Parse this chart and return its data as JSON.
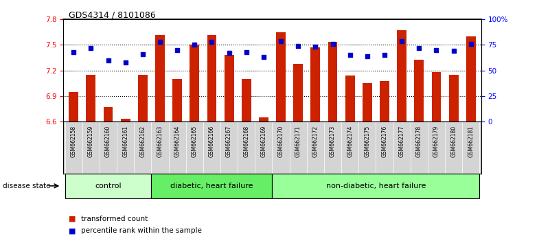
{
  "title": "GDS4314 / 8101086",
  "samples": [
    "GSM662158",
    "GSM662159",
    "GSM662160",
    "GSM662161",
    "GSM662162",
    "GSM662163",
    "GSM662164",
    "GSM662165",
    "GSM662166",
    "GSM662167",
    "GSM662168",
    "GSM662169",
    "GSM662170",
    "GSM662171",
    "GSM662172",
    "GSM662173",
    "GSM662174",
    "GSM662175",
    "GSM662176",
    "GSM662177",
    "GSM662178",
    "GSM662179",
    "GSM662180",
    "GSM662181"
  ],
  "transformed_count": [
    6.95,
    7.15,
    6.77,
    6.63,
    7.15,
    7.62,
    7.1,
    7.5,
    7.62,
    7.38,
    7.1,
    6.65,
    7.65,
    7.28,
    7.47,
    7.54,
    7.14,
    7.05,
    7.08,
    7.67,
    7.33,
    7.18,
    7.15,
    7.6
  ],
  "percentile_rank": [
    68,
    72,
    60,
    58,
    66,
    78,
    70,
    75,
    78,
    67,
    68,
    63,
    79,
    74,
    73,
    76,
    65,
    64,
    65,
    79,
    72,
    70,
    69,
    76
  ],
  "ylim_left": [
    6.6,
    7.8
  ],
  "ylim_right": [
    0,
    100
  ],
  "yticks_left": [
    6.6,
    6.9,
    7.2,
    7.5,
    7.8
  ],
  "yticks_right": [
    0,
    25,
    50,
    75,
    100
  ],
  "ytick_labels_right": [
    "0",
    "25",
    "50",
    "75",
    "100%"
  ],
  "hlines": [
    7.5,
    7.2,
    6.9
  ],
  "groups": [
    {
      "label": "control",
      "start": 0,
      "end": 4,
      "color": "#ccffcc"
    },
    {
      "label": "diabetic, heart failure",
      "start": 5,
      "end": 11,
      "color": "#66ee66"
    },
    {
      "label": "non-diabetic, heart failure",
      "start": 12,
      "end": 23,
      "color": "#99ff99"
    }
  ],
  "bar_color": "#CC2200",
  "dot_color": "#0000CC",
  "bar_width": 0.55,
  "tick_label_fontsize": 5.5,
  "title_fontsize": 9,
  "legend_fontsize": 7.5,
  "group_label_fontsize": 8,
  "disease_state_label": "disease state",
  "legend_items": [
    {
      "label": "transformed count",
      "color": "#CC2200"
    },
    {
      "label": "percentile rank within the sample",
      "color": "#0000CC"
    }
  ],
  "plot_bg": "#ffffff",
  "sample_bg": "#d4d4d4"
}
